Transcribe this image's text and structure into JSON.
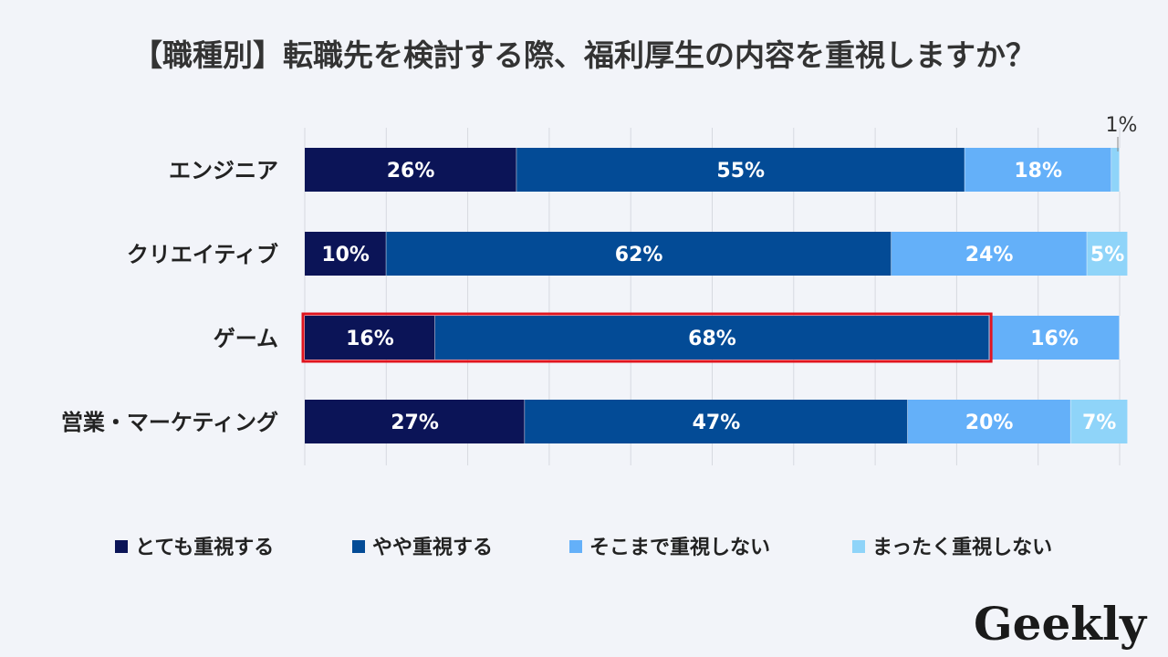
{
  "chart_data": {
    "type": "bar",
    "orientation": "horizontal",
    "stacked": true,
    "percent": true,
    "title": "【職種別】転職先を検討する際、福利厚生の内容を重視しますか？",
    "categories": [
      "エンジニア",
      "クリエイティブ",
      "ゲーム",
      "営業・マーケティング"
    ],
    "series": [
      {
        "name": "とても重視する",
        "color": "#0b1457",
        "values": [
          26,
          10,
          16,
          27
        ]
      },
      {
        "name": "やや重視する",
        "color": "#034b96",
        "values": [
          55,
          62,
          68,
          47
        ]
      },
      {
        "name": "そこまで重視しない",
        "color": "#64b0f9",
        "values": [
          18,
          24,
          16,
          20
        ]
      },
      {
        "name": "まったく重視しない",
        "color": "#8fd4f9",
        "values": [
          1,
          5,
          0,
          7
        ]
      }
    ],
    "data_labels": [
      [
        "26%",
        "55%",
        "18%",
        "1%"
      ],
      [
        "10%",
        "62%",
        "24%",
        "5%"
      ],
      [
        "16%",
        "68%",
        "16%",
        ""
      ],
      [
        "27%",
        "47%",
        "20%",
        "7%"
      ]
    ],
    "xlim": [
      0,
      100
    ],
    "grid": true,
    "legend": "bottom",
    "highlight": {
      "category": "ゲーム",
      "series": [
        "とても重視する",
        "やや重視する"
      ],
      "color": "#e0141e"
    }
  },
  "logo": {
    "text": "Geekly"
  }
}
